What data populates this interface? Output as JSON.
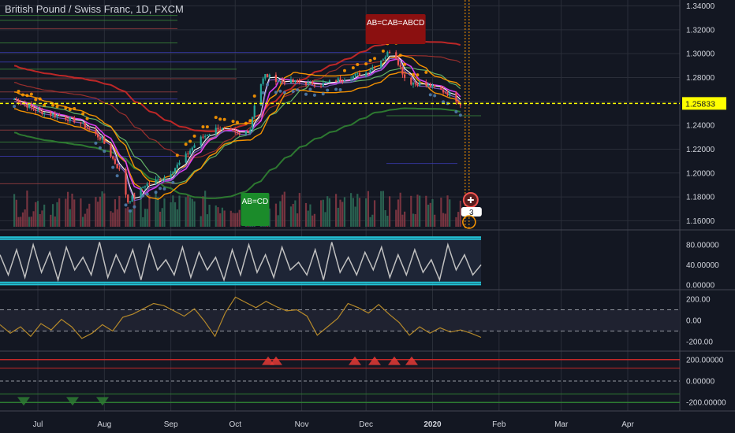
{
  "header": {
    "title": "British Pound / Swiss Franc, 1D, FXCM"
  },
  "colors": {
    "background": "#131722",
    "grid": "#2a2e39",
    "price_line": "#ffff00",
    "up": "#26a69a",
    "down": "#ef5350",
    "pattern_label_green": "#1b8b2a",
    "pattern_label_red": "#8b1010",
    "band_cyan": "#22c5d8",
    "oscillator": "#c0c0c0",
    "cci": "#b5892a"
  },
  "icons": {
    "alert": "plus-circle-icon",
    "badge": "count-badge"
  },
  "chart_data": [
    {
      "type": "line",
      "panel": "price",
      "symbol": "British Pound / Swiss Franc",
      "timeframe": "1D",
      "source": "FXCM",
      "x_tick_labels": [
        "Jul",
        "Aug",
        "Sep",
        "Oct",
        "Nov",
        "Dec",
        "2020",
        "Feb",
        "Mar",
        "Apr"
      ],
      "y_tick_labels": [
        "1.34000",
        "1.32000",
        "1.30000",
        "1.28000",
        "1.26000",
        "1.24000",
        "1.22000",
        "1.20000",
        "1.18000",
        "1.16000"
      ],
      "ylim": [
        1.155,
        1.343
      ],
      "last_price_label": "1.25833",
      "last_price": 1.25833,
      "close_x": [
        "Jun 20",
        "Jul 1",
        "Jul 10",
        "Jul 20",
        "Jul 31",
        "Aug 8",
        "Aug 12",
        "Aug 20",
        "Aug 30",
        "Sep 6",
        "Sep 14",
        "Sep 23",
        "Oct 3",
        "Oct 8",
        "Oct 11",
        "Oct 15",
        "Oct 22",
        "Nov 1",
        "Nov 10",
        "Nov 20",
        "Dec 1",
        "Dec 10",
        "Dec 13",
        "Dec 20",
        "Dec 26",
        "Jan 3",
        "Jan 10",
        "Jan 14"
      ],
      "close": [
        1.262,
        1.252,
        1.248,
        1.243,
        1.228,
        1.202,
        1.176,
        1.19,
        1.197,
        1.21,
        1.228,
        1.238,
        1.232,
        1.237,
        1.268,
        1.282,
        1.277,
        1.276,
        1.274,
        1.279,
        1.284,
        1.298,
        1.305,
        1.276,
        1.275,
        1.271,
        1.265,
        1.258
      ],
      "volume_label": "AB=CD",
      "pattern_labels": [
        {
          "text": "AB=CD",
          "color": "green",
          "anchor_date": "Oct 11"
        },
        {
          "text": "AB=CAB=ABCD",
          "color": "red",
          "anchor_date": "Dec 10"
        }
      ],
      "alert_badge": "3",
      "grid": true
    },
    {
      "type": "line",
      "panel": "oscillator",
      "y_tick_labels": [
        "80.00000",
        "40.00000",
        "0.00000"
      ],
      "ylim": [
        0,
        100
      ],
      "series": [
        {
          "values": [
            60,
            20,
            70,
            15,
            80,
            25,
            65,
            10,
            75,
            30,
            55,
            20,
            85,
            15,
            60,
            25,
            70,
            10,
            80,
            30,
            50,
            20,
            75,
            15,
            65,
            30,
            55,
            10,
            70,
            20,
            80,
            25,
            60,
            15,
            75,
            30,
            45,
            20,
            70,
            10,
            85,
            25,
            55,
            20,
            65,
            30,
            75,
            15,
            60,
            20,
            70,
            25,
            50,
            10,
            80,
            30,
            60,
            20,
            40
          ]
        }
      ]
    },
    {
      "type": "line",
      "panel": "cci",
      "y_tick_labels": [
        "200.00",
        "0.00",
        "-200.00"
      ],
      "ylim": [
        -260,
        260
      ],
      "series": [
        {
          "values": [
            -40,
            -120,
            -60,
            -150,
            -30,
            -90,
            10,
            -60,
            -170,
            -120,
            -40,
            -100,
            30,
            60,
            110,
            160,
            140,
            90,
            40,
            110,
            -10,
            -150,
            70,
            220,
            170,
            120,
            180,
            130,
            90,
            100,
            40,
            -140,
            -60,
            20,
            160,
            120,
            70,
            150,
            60,
            -20,
            -140,
            -60,
            -120,
            -70,
            -110,
            -90,
            -120,
            -160
          ]
        }
      ]
    },
    {
      "type": "bar",
      "panel": "divergence",
      "y_tick_labels": [
        "200.00000",
        "0.00000",
        "-200.00000"
      ],
      "ylim": [
        -250,
        250
      ]
    }
  ]
}
